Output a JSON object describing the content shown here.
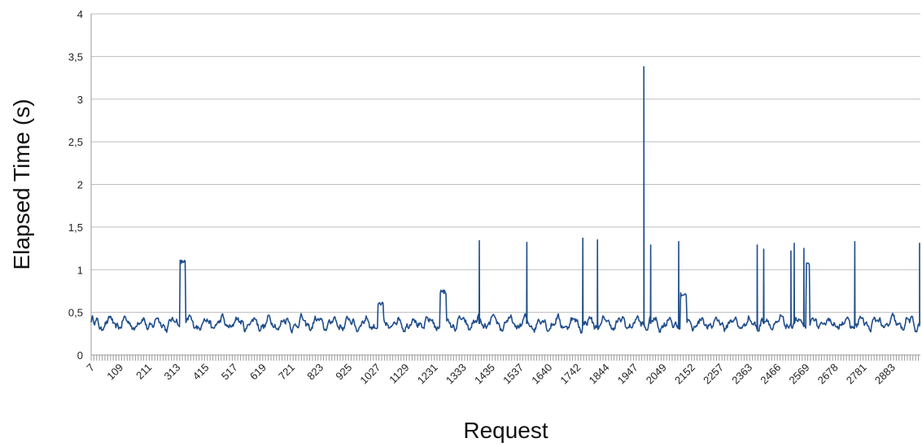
{
  "chart_data": {
    "type": "line",
    "title": "",
    "xlabel": "Request",
    "ylabel": "Elapsed Time (s)",
    "ylim": [
      0,
      4
    ],
    "xlim": [
      7,
      2940
    ],
    "grid": "horizontal",
    "legend": "none",
    "y_ticks": [
      {
        "value": 0,
        "label": "0"
      },
      {
        "value": 0.5,
        "label": "0,5"
      },
      {
        "value": 1,
        "label": "1"
      },
      {
        "value": 1.5,
        "label": "1,5"
      },
      {
        "value": 2,
        "label": "2"
      },
      {
        "value": 2.5,
        "label": "2,5"
      },
      {
        "value": 3,
        "label": "3"
      },
      {
        "value": 3.5,
        "label": "3,5"
      },
      {
        "value": 4,
        "label": "4"
      }
    ],
    "x_tick_labels": [
      "7",
      "109",
      "211",
      "313",
      "415",
      "517",
      "619",
      "721",
      "823",
      "925",
      "1027",
      "1129",
      "1231",
      "1333",
      "1435",
      "1537",
      "1640",
      "1742",
      "1844",
      "1947",
      "2049",
      "2152",
      "2257",
      "2363",
      "2466",
      "2569",
      "2678",
      "2781",
      "2883"
    ],
    "series": [
      {
        "color": "#1f4e8c",
        "baseline": 0.37,
        "plateaus": [
          {
            "x_start": 320,
            "x_end": 340,
            "y": 1.1
          },
          {
            "x_start": 1020,
            "x_end": 1040,
            "y": 0.6
          },
          {
            "x_start": 1240,
            "x_end": 1262,
            "y": 0.74
          },
          {
            "x_start": 2092,
            "x_end": 2112,
            "y": 0.72
          },
          {
            "x_start": 2536,
            "x_end": 2548,
            "y": 1.05
          }
        ],
        "spikes": [
          {
            "x": 1380,
            "y": 1.34
          },
          {
            "x": 1548,
            "y": 1.32
          },
          {
            "x": 1746,
            "y": 1.37
          },
          {
            "x": 1798,
            "y": 1.35
          },
          {
            "x": 1962,
            "y": 3.38
          },
          {
            "x": 1986,
            "y": 1.29
          },
          {
            "x": 2085,
            "y": 1.33
          },
          {
            "x": 2363,
            "y": 1.29
          },
          {
            "x": 2386,
            "y": 1.24
          },
          {
            "x": 2482,
            "y": 1.22
          },
          {
            "x": 2494,
            "y": 1.31
          },
          {
            "x": 2528,
            "y": 1.25
          },
          {
            "x": 2708,
            "y": 1.33
          },
          {
            "x": 2937,
            "y": 1.31
          }
        ]
      }
    ]
  }
}
